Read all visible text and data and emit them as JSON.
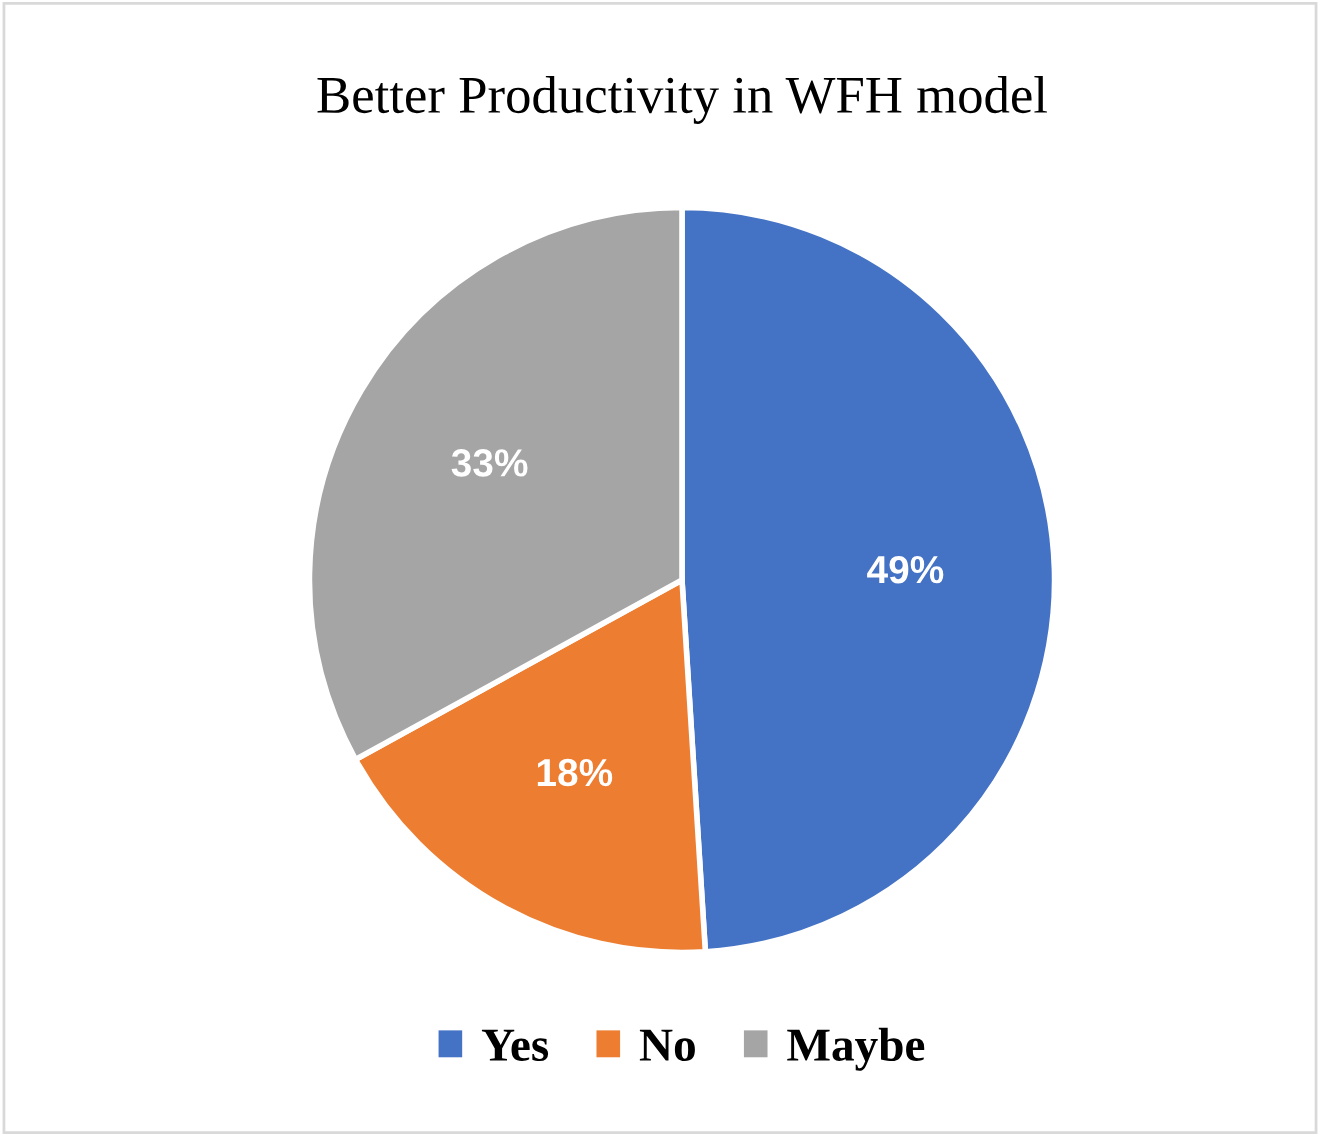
{
  "chart_data": {
    "type": "pie",
    "title": "Better Productivity in WFH model",
    "categories": [
      "Yes",
      "No",
      "Maybe"
    ],
    "values": [
      49,
      18,
      33
    ],
    "value_labels": [
      "49%",
      "18%",
      "33%"
    ],
    "colors": [
      "#4472c4",
      "#ed7d31",
      "#a5a5a5"
    ],
    "legend": "bottom"
  }
}
